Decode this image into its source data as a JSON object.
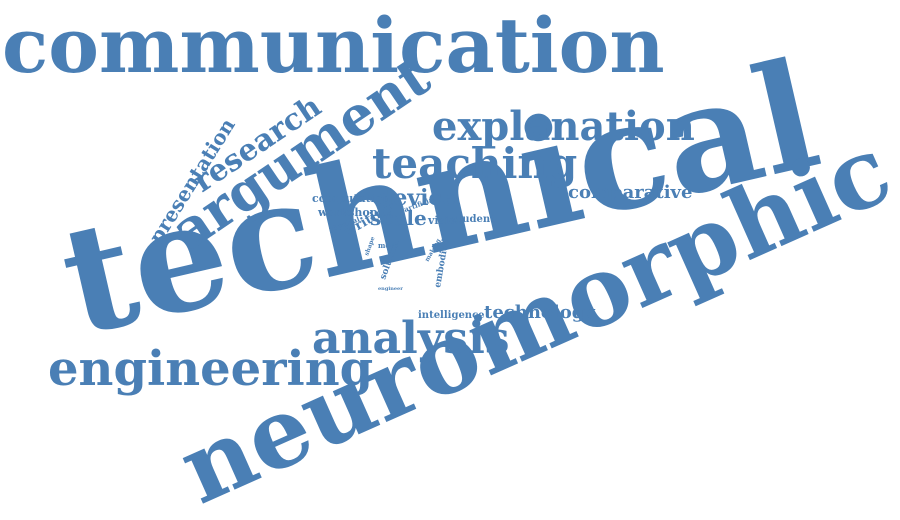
{
  "colors": {
    "word": "#4a7fb5",
    "background": "#ffffff"
  },
  "words": [
    {
      "text": "communication"
    },
    {
      "text": "technical"
    },
    {
      "text": "neuromorphic"
    },
    {
      "text": "argument"
    },
    {
      "text": "research"
    },
    {
      "text": "presentation"
    },
    {
      "text": "explanation"
    },
    {
      "text": "teaching"
    },
    {
      "text": "comparative"
    },
    {
      "text": "engineering"
    },
    {
      "text": "analysis"
    },
    {
      "text": "technology"
    },
    {
      "text": "intelligence"
    },
    {
      "text": "device"
    },
    {
      "text": "scale"
    },
    {
      "text": "computation"
    },
    {
      "text": "workshop"
    },
    {
      "text": "writing"
    },
    {
      "text": "physical"
    },
    {
      "text": "artificial"
    },
    {
      "text": "vision"
    },
    {
      "text": "student"
    },
    {
      "text": "solution"
    },
    {
      "text": "embodied"
    },
    {
      "text": "making"
    },
    {
      "text": "more"
    },
    {
      "text": "shape"
    },
    {
      "text": "engineer"
    }
  ]
}
